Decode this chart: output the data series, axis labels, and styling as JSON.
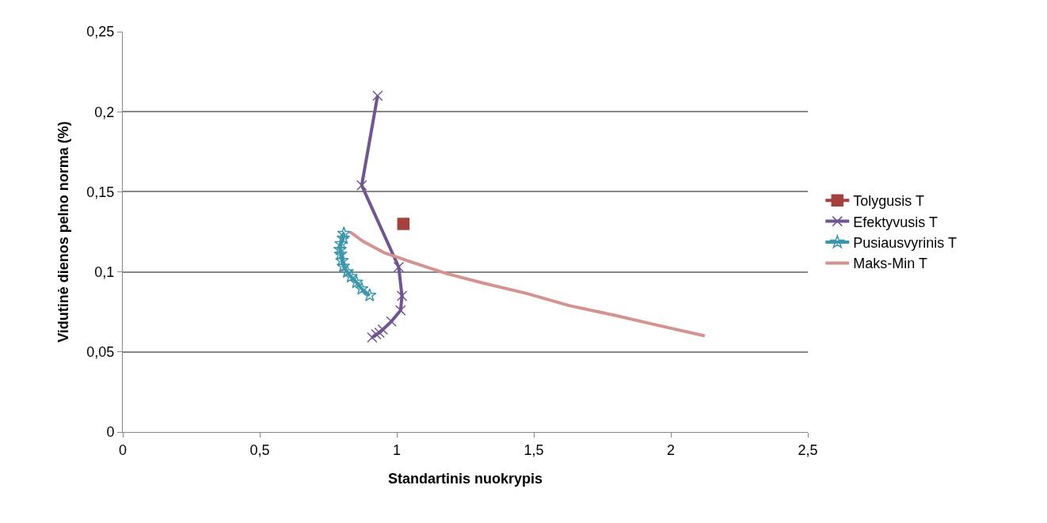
{
  "chart_data": {
    "type": "line",
    "xlabel": "Standartinis nuokrypis",
    "ylabel": "Vidutinė dienos pelno norma (%)",
    "xlim": [
      0,
      2.5
    ],
    "xticks": [
      0,
      {
        "value": 0.5,
        "label": "0,5"
      },
      1,
      {
        "value": 1.5,
        "label": "1,5"
      },
      2,
      {
        "value": 2.5,
        "label": "2,5"
      }
    ],
    "ylim": [
      0,
      0.25
    ],
    "yticks": [
      0,
      {
        "value": 0.05,
        "label": "0,05"
      },
      {
        "value": 0.1,
        "label": "0,1"
      },
      {
        "value": 0.15,
        "label": "0,15"
      },
      {
        "value": 0.2,
        "label": "0,2"
      },
      {
        "value": 0.25,
        "label": "0,25"
      }
    ],
    "grid": "y",
    "legend": "right",
    "line_style": "solid",
    "series": [
      {
        "name": "Tolygusis T",
        "color": "#a5403d",
        "marker": "square",
        "x": [
          1.024
        ],
        "values": [
          0.13
        ]
      },
      {
        "name": "Efektyvusis T",
        "color": "#6f5592",
        "marker": "cross",
        "x": [
          0.93,
          0.872,
          1.007,
          1.019,
          1.014,
          0.98,
          0.949,
          0.937,
          0.925,
          0.91
        ],
        "values": [
          0.21,
          0.154,
          0.103,
          0.085,
          0.076,
          0.069,
          0.064,
          0.062,
          0.061,
          0.059
        ]
      },
      {
        "name": "Pusiausvyrinis T",
        "color": "#3a97ad",
        "marker": "star",
        "x": [
          0.807,
          0.805,
          0.797,
          0.793,
          0.795,
          0.8,
          0.805,
          0.819,
          0.833,
          0.853,
          0.872,
          0.901
        ],
        "values": [
          0.124,
          0.121,
          0.1175,
          0.114,
          0.111,
          0.107,
          0.1035,
          0.1,
          0.097,
          0.0935,
          0.0894,
          0.0853
        ]
      },
      {
        "name": "Maks-Min T",
        "color": "#d49391",
        "marker": "none",
        "x": [
          0.829,
          0.877,
          0.954,
          1.055,
          1.18,
          1.315,
          1.474,
          1.628,
          1.792,
          1.956,
          2.124
        ],
        "values": [
          0.125,
          0.119,
          0.112,
          0.106,
          0.099,
          0.093,
          0.0865,
          0.079,
          0.073,
          0.0665,
          0.06
        ]
      }
    ]
  }
}
